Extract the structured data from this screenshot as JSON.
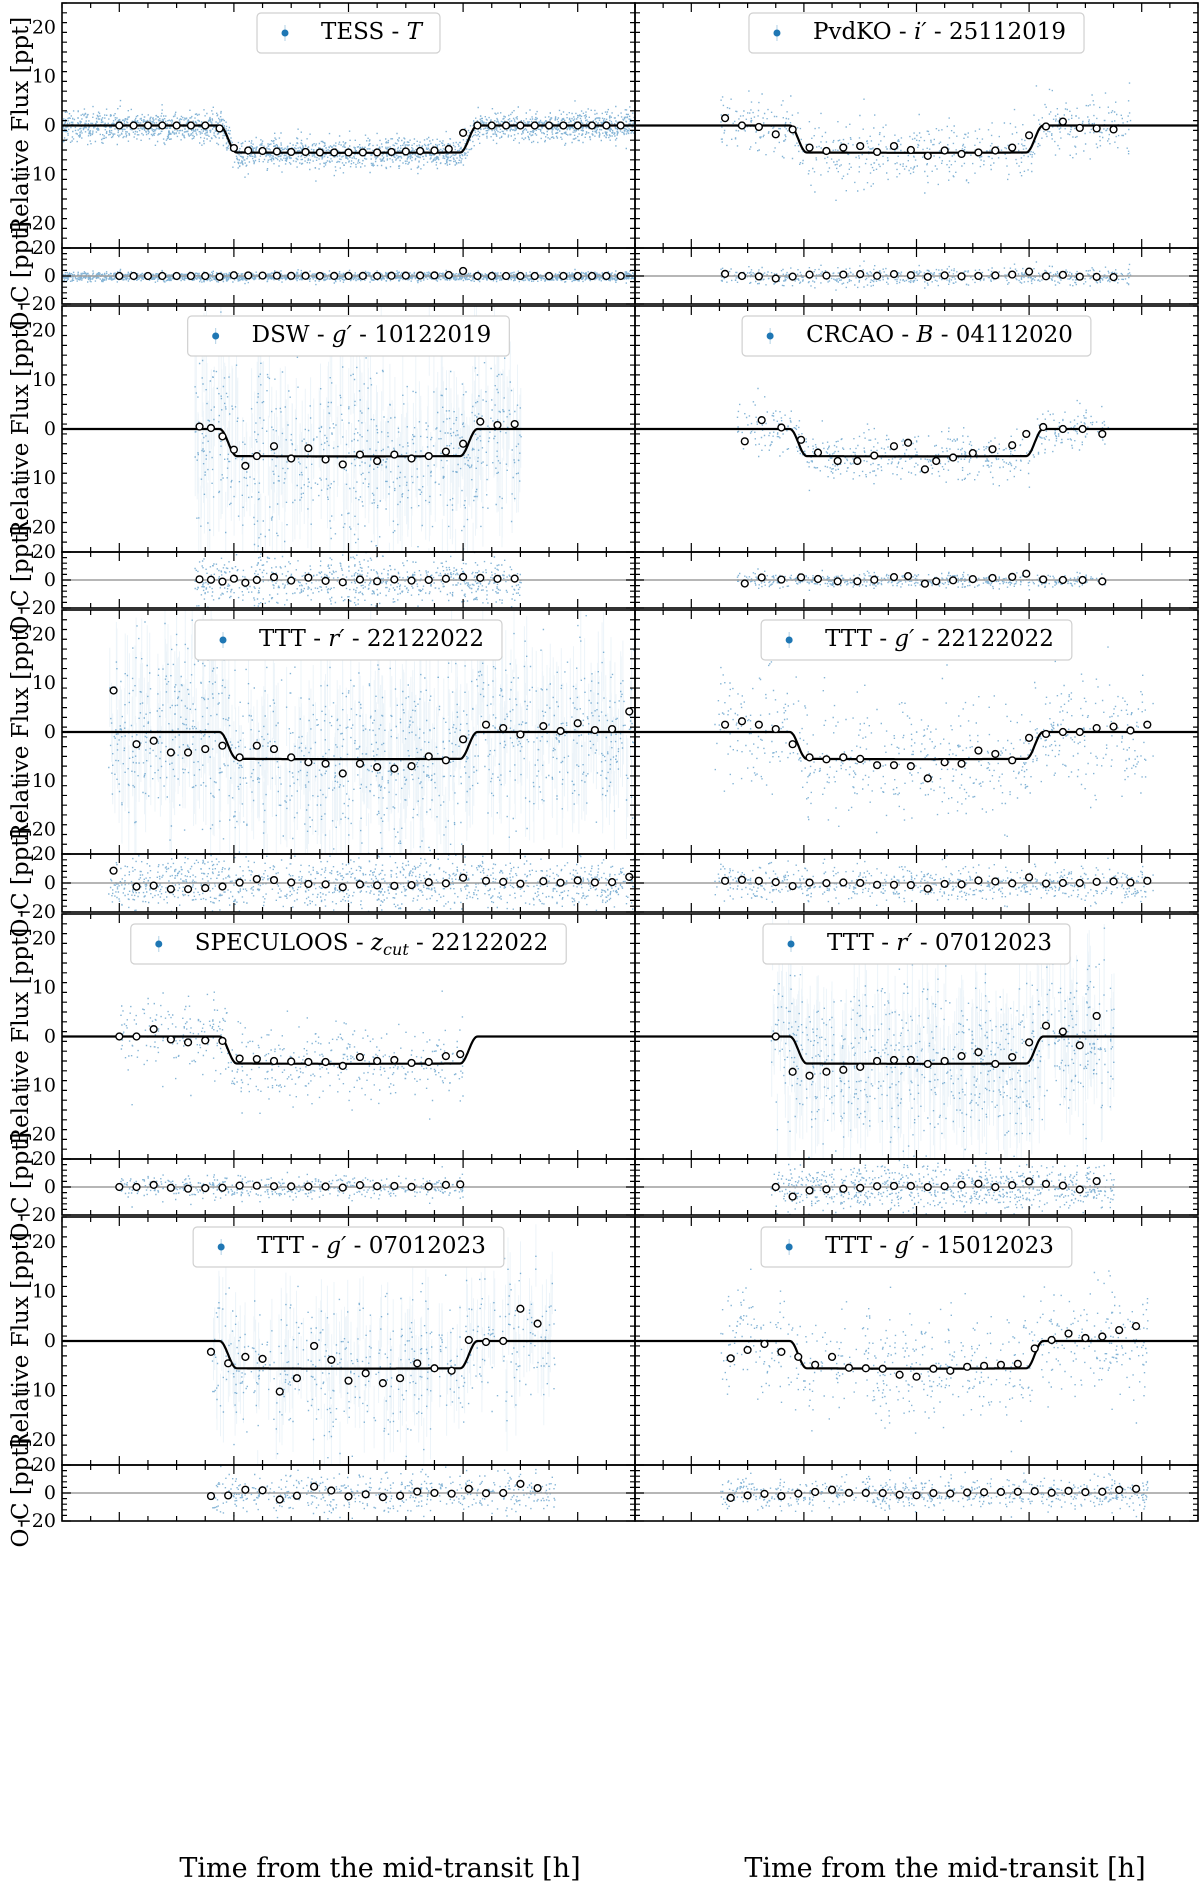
{
  "chart_data": {
    "type": "scatter",
    "subplot_layout": {
      "rows": 6,
      "cols": 2
    },
    "xlabel": "Time from the mid-transit [h]",
    "ylabel_main": "Relative Flux [ppt]",
    "ylabel_residual": "O-C [ppt]",
    "xlim": [
      -5,
      5
    ],
    "ylim_main": [
      -25,
      25
    ],
    "ylim_residual": [
      -20,
      20
    ],
    "xticks": [
      -4,
      -2,
      0,
      2,
      4
    ],
    "yticks_main": [
      -20,
      -10,
      0,
      10,
      20
    ],
    "yticks_residual": [
      -20,
      0,
      20
    ],
    "colors": {
      "data": "#1f77b4",
      "model": "#000000",
      "zero_line": "#9e9e9e"
    },
    "transit_model": {
      "depth": 5.5,
      "t1": -2.25,
      "t2": -1.95,
      "t3": 1.95,
      "t4": 2.25
    },
    "panels": [
      {
        "legend": {
          "prefix": "TESS - ",
          "filter": "T",
          "date": ""
        },
        "x_range": [
          -5,
          5
        ],
        "scatter_ppt": 1.5,
        "x": [
          -4,
          -3.75,
          -3.5,
          -3.25,
          -3,
          -2.75,
          -2.5,
          -2.25,
          -2,
          -1.75,
          -1.5,
          -1.25,
          -1,
          -0.75,
          -0.5,
          -0.25,
          0,
          0.25,
          0.5,
          0.75,
          1,
          1.25,
          1.5,
          1.75,
          2,
          2.25,
          2.5,
          2.75,
          3,
          3.25,
          3.5,
          3.75,
          4,
          4.25,
          4.5,
          4.75
        ],
        "y": [
          0,
          0,
          0,
          0,
          0,
          0,
          0,
          -0.6,
          -4.6,
          -5.1,
          -5.2,
          -5.3,
          -5.4,
          -5.4,
          -5.5,
          -5.5,
          -5.5,
          -5.5,
          -5.5,
          -5.4,
          -5.3,
          -5.2,
          -5.1,
          -4.8,
          -1.5,
          0,
          0,
          0,
          0,
          0,
          0,
          0,
          0,
          0,
          0,
          0
        ]
      },
      {
        "legend": {
          "prefix": "PvdKO - ",
          "filter": "i′",
          "date": " - 25112019"
        },
        "x_range": [
          -3.5,
          3.8
        ],
        "scatter_ppt": 3.0,
        "x": [
          -3.4,
          -3.1,
          -2.8,
          -2.5,
          -2.2,
          -1.9,
          -1.6,
          -1.3,
          -1,
          -0.7,
          -0.4,
          -0.1,
          0.2,
          0.5,
          0.8,
          1.1,
          1.4,
          1.7,
          2,
          2.3,
          2.6,
          2.9,
          3.2,
          3.5
        ],
        "y": [
          1.5,
          0,
          -0.3,
          -1.8,
          -0.8,
          -4.5,
          -5.2,
          -4.5,
          -4.2,
          -5.4,
          -4.2,
          -5.0,
          -6.2,
          -5.1,
          -5.8,
          -5.5,
          -5.1,
          -4.5,
          -2.0,
          -0.2,
          0.8,
          -0.5,
          -0.6,
          -0.8
        ]
      },
      {
        "legend": {
          "prefix": "DSW - ",
          "filter": "g′",
          "date": " - 10122019"
        },
        "x_range": [
          -2.7,
          3.0
        ],
        "scatter_ppt": 9.0,
        "x": [
          -2.6,
          -2.4,
          -2.2,
          -2.0,
          -1.8,
          -1.6,
          -1.3,
          -1.0,
          -0.7,
          -0.4,
          -0.1,
          0.2,
          0.5,
          0.8,
          1.1,
          1.4,
          1.7,
          2.0,
          2.3,
          2.6,
          2.9
        ],
        "y": [
          0.5,
          0.2,
          -1.5,
          -4.2,
          -7.5,
          -5.5,
          -3.5,
          -6.0,
          -3.9,
          -6.2,
          -7.2,
          -5.2,
          -6.5,
          -5.2,
          -6.0,
          -5.5,
          -4.6,
          -3.0,
          1.5,
          0.8,
          1.0
        ]
      },
      {
        "legend": {
          "prefix": "CRCAO - ",
          "filter": "B",
          "date": " - 04112020"
        },
        "x_range": [
          -3.2,
          3.4
        ],
        "scatter_ppt": 2.5,
        "x": [
          -3.05,
          -2.75,
          -2.4,
          -2.05,
          -1.75,
          -1.4,
          -1.05,
          -0.75,
          -0.4,
          -0.15,
          0.15,
          0.35,
          0.65,
          1.0,
          1.35,
          1.7,
          1.95,
          2.25,
          2.6,
          2.95,
          3.3
        ],
        "y": [
          -2.5,
          1.8,
          0.3,
          -2.2,
          -4.8,
          -6.5,
          -6.5,
          -5.4,
          -3.5,
          -2.8,
          -8.2,
          -6.5,
          -5.8,
          -4.9,
          -4.1,
          -3.3,
          -1.0,
          0.4,
          0,
          0,
          -1.0
        ]
      },
      {
        "legend": {
          "prefix": "TTT - ",
          "filter": "r′",
          "date": " - 22122022"
        },
        "x_range": [
          -4.2,
          5.0
        ],
        "scatter_ppt": 9.0,
        "x": [
          -4.1,
          -3.7,
          -3.4,
          -3.1,
          -2.8,
          -2.5,
          -2.2,
          -1.9,
          -1.6,
          -1.3,
          -1.0,
          -0.7,
          -0.4,
          -0.1,
          0.2,
          0.5,
          0.8,
          1.1,
          1.4,
          1.7,
          2.0,
          2.4,
          2.7,
          3.0,
          3.4,
          3.7,
          4.0,
          4.3,
          4.6,
          4.9
        ],
        "y": [
          8.5,
          -2.5,
          -1.8,
          -4.2,
          -4.2,
          -3.5,
          -2.8,
          -5.2,
          -2.8,
          -3.5,
          -5.2,
          -6.2,
          -6.5,
          -8.5,
          -6.5,
          -7.2,
          -7.5,
          -7.0,
          -5.0,
          -5.8,
          -1.5,
          1.5,
          0.8,
          -0.5,
          1.2,
          0.2,
          1.8,
          0.4,
          0.6,
          4.2
        ]
      },
      {
        "legend": {
          "prefix": "TTT - ",
          "filter": "g′",
          "date": " - 22122022"
        },
        "x_range": [
          -3.6,
          4.2
        ],
        "scatter_ppt": 6.0,
        "x": [
          -3.4,
          -3.1,
          -2.8,
          -2.5,
          -2.2,
          -1.9,
          -1.6,
          -1.3,
          -1.0,
          -0.7,
          -0.4,
          -0.1,
          0.2,
          0.5,
          0.8,
          1.1,
          1.4,
          1.7,
          2.0,
          2.3,
          2.6,
          2.9,
          3.2,
          3.5,
          3.8,
          4.1
        ],
        "y": [
          1.5,
          2.2,
          1.5,
          0.6,
          -2.5,
          -5.2,
          -5.6,
          -5.2,
          -5.5,
          -6.8,
          -6.8,
          -7.0,
          -9.5,
          -6.2,
          -6.5,
          -3.8,
          -4.5,
          -5.8,
          -1.2,
          -0.4,
          0,
          0,
          0.8,
          1.1,
          0.3,
          1.5
        ]
      },
      {
        "legend": {
          "prefix": "SPECULOOS - ",
          "filter": "z",
          "filter_sub": "cut",
          "date": " - 22122022"
        },
        "x_range": [
          -4.0,
          2.0
        ],
        "scatter_ppt": 4.0,
        "x": [
          -4.0,
          -3.7,
          -3.4,
          -3.1,
          -2.8,
          -2.5,
          -2.2,
          -1.9,
          -1.6,
          -1.3,
          -1.0,
          -0.7,
          -0.4,
          -0.1,
          0.2,
          0.5,
          0.8,
          1.1,
          1.4,
          1.7,
          1.95
        ],
        "y": [
          0,
          0,
          1.5,
          -0.6,
          -1.2,
          -0.8,
          -0.9,
          -4.5,
          -4.6,
          -5.0,
          -5.1,
          -5.2,
          -5.2,
          -6.0,
          -4.2,
          -5.0,
          -4.8,
          -5.4,
          -5.2,
          -4.0,
          -3.6
        ]
      },
      {
        "legend": {
          "prefix": "TTT - ",
          "filter": "r′",
          "date": " - 07012023"
        },
        "x_range": [
          -2.6,
          3.5
        ],
        "scatter_ppt": 8.0,
        "x": [
          -2.5,
          -2.2,
          -1.9,
          -1.6,
          -1.3,
          -1.0,
          -0.7,
          -0.4,
          -0.1,
          0.2,
          0.5,
          0.8,
          1.1,
          1.4,
          1.7,
          2.0,
          2.3,
          2.6,
          2.9,
          3.2
        ],
        "y": [
          0,
          -7.2,
          -8.0,
          -7.2,
          -6.8,
          -6.2,
          -5.0,
          -4.8,
          -4.8,
          -5.6,
          -5.0,
          -4.0,
          -3.2,
          -5.6,
          -4.2,
          -1.2,
          2.2,
          1.0,
          -1.8,
          4.2
        ]
      },
      {
        "legend": {
          "prefix": "TTT - ",
          "filter": "g′",
          "date": " - 07012023"
        },
        "x_range": [
          -2.4,
          3.6
        ],
        "scatter_ppt": 7.0,
        "x": [
          -2.4,
          -2.1,
          -1.8,
          -1.5,
          -1.2,
          -0.9,
          -0.6,
          -0.3,
          0.0,
          0.3,
          0.6,
          0.9,
          1.2,
          1.5,
          1.8,
          2.1,
          2.4,
          2.7,
          3.0,
          3.3
        ],
        "y": [
          -2.2,
          -4.5,
          -3.2,
          -3.6,
          -10.2,
          -7.5,
          -1.0,
          -3.8,
          -8.0,
          -6.5,
          -8.5,
          -7.5,
          -4.5,
          -5.5,
          -6.0,
          0.2,
          -0.2,
          0,
          6.5,
          3.5
        ]
      },
      {
        "legend": {
          "prefix": "TTT - ",
          "filter": "g′",
          "date": " - 15012023"
        },
        "x_range": [
          -3.5,
          4.1
        ],
        "scatter_ppt": 5.5,
        "x": [
          -3.3,
          -3.0,
          -2.7,
          -2.4,
          -2.1,
          -1.8,
          -1.5,
          -1.2,
          -0.9,
          -0.6,
          -0.3,
          0.0,
          0.3,
          0.6,
          0.9,
          1.2,
          1.5,
          1.8,
          2.1,
          2.4,
          2.7,
          3.0,
          3.3,
          3.6,
          3.9
        ],
        "y": [
          -3.5,
          -1.8,
          -0.6,
          -2.2,
          -3.2,
          -4.8,
          -3.2,
          -5.4,
          -5.5,
          -5.6,
          -6.8,
          -7.2,
          -5.6,
          -6.0,
          -5.2,
          -5.0,
          -4.8,
          -4.6,
          -1.5,
          0.2,
          1.5,
          0.6,
          0.9,
          2.2,
          3.0
        ]
      }
    ]
  }
}
